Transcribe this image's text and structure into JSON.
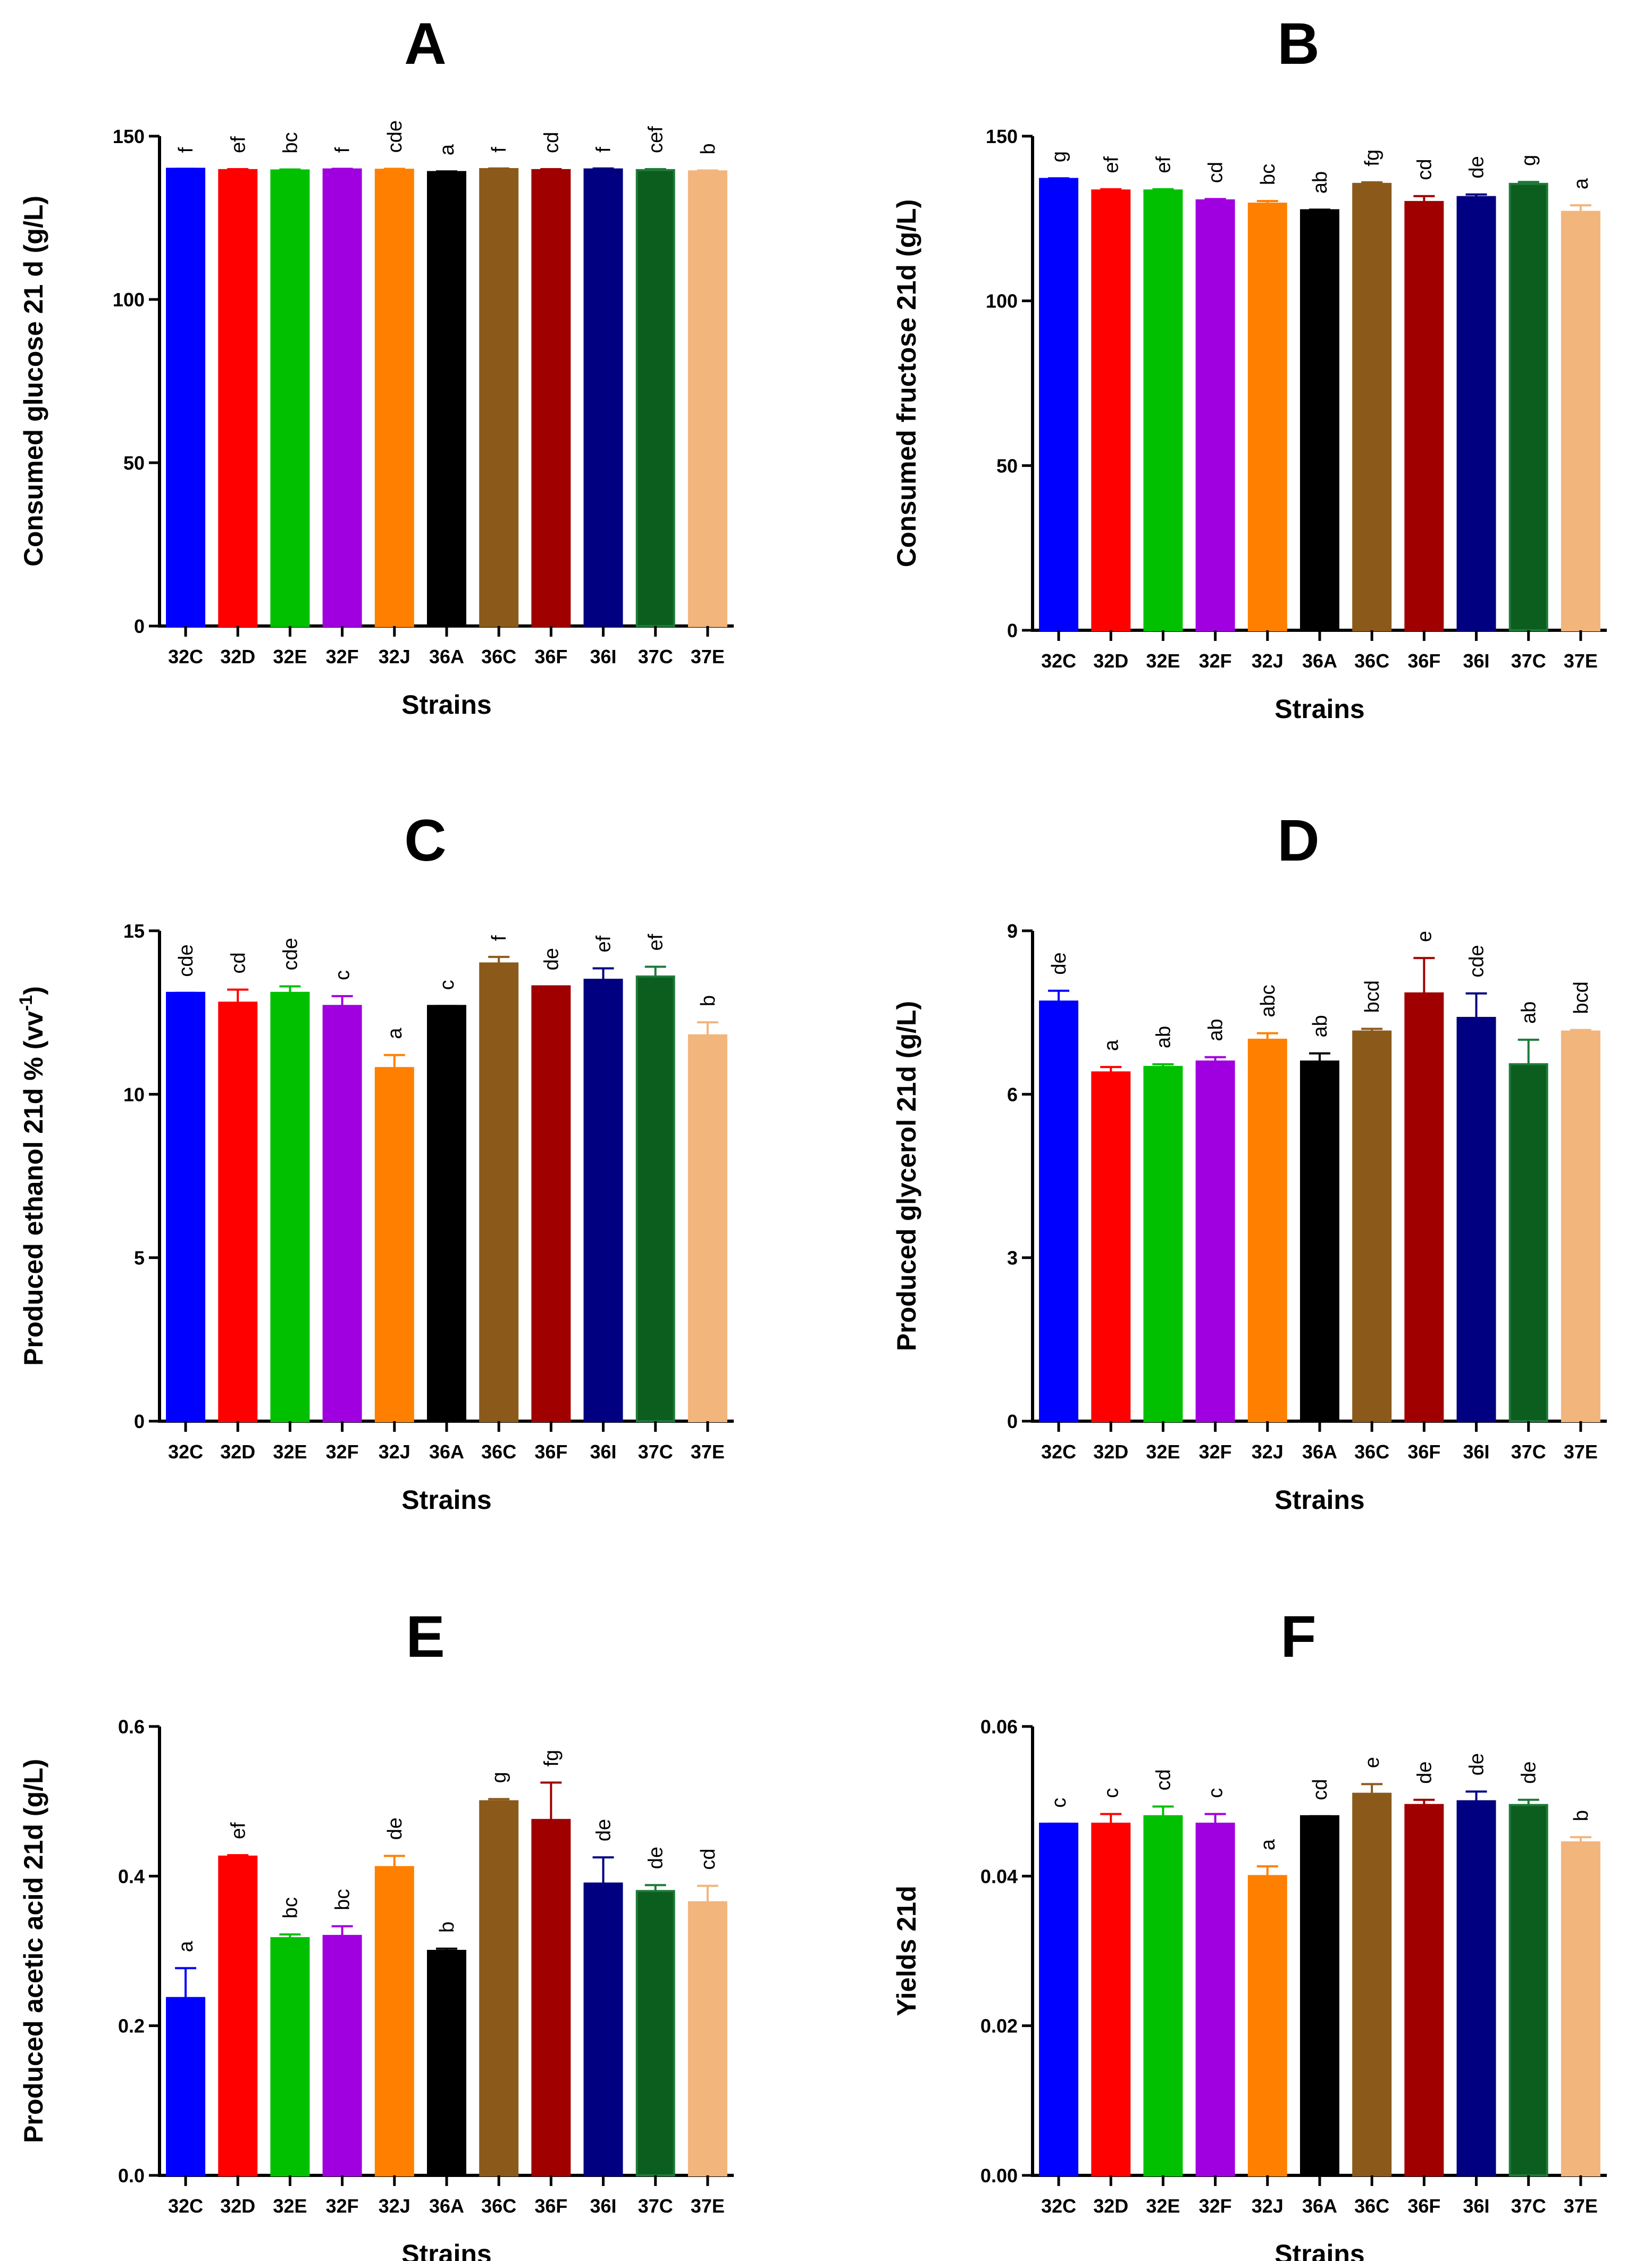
{
  "chart_data": [
    {
      "panel": "A",
      "type": "bar",
      "ylabel": "Consumed glucose 21 d (g/L)",
      "xlabel": "Strains",
      "categories": [
        "32C",
        "32D",
        "32E",
        "32F",
        "32J",
        "36A",
        "36C",
        "36F",
        "36I",
        "37C",
        "37E"
      ],
      "values": [
        140.0,
        139.6,
        139.5,
        139.8,
        139.7,
        139.0,
        139.9,
        139.6,
        139.8,
        139.6,
        139.2
      ],
      "errors": [
        0.0,
        0.3,
        0.3,
        0.2,
        0.3,
        0.2,
        0.2,
        0.3,
        0.3,
        0.3,
        0.3
      ],
      "letters": [
        "f",
        "ef",
        "bc",
        "f",
        "cde",
        "a",
        "f",
        "cd",
        "f",
        "cef",
        "b"
      ],
      "ylim": [
        0,
        150
      ],
      "yticks": [
        0,
        50,
        100,
        150
      ],
      "ytick_labels": [
        "0",
        "50",
        "100",
        "150"
      ]
    },
    {
      "panel": "B",
      "type": "bar",
      "ylabel": "Consumed fructose 21d (g/L)",
      "xlabel": "Strains",
      "categories": [
        "32C",
        "32D",
        "32E",
        "32F",
        "32J",
        "36A",
        "36C",
        "36F",
        "36I",
        "37C",
        "37E"
      ],
      "values": [
        137.0,
        133.5,
        133.5,
        130.5,
        129.5,
        127.5,
        135.5,
        130.0,
        131.5,
        135.5,
        127.0
      ],
      "errors": [
        0.2,
        0.4,
        0.4,
        0.4,
        0.8,
        0.2,
        0.5,
        1.8,
        0.8,
        0.6,
        2.0
      ],
      "letters": [
        "g",
        "ef",
        "ef",
        "cd",
        "bc",
        "ab",
        "fg",
        "cd",
        "de",
        "g",
        "a"
      ],
      "ylim": [
        0,
        150
      ],
      "yticks": [
        0,
        50,
        100,
        150
      ],
      "ytick_labels": [
        "0",
        "50",
        "100",
        "150"
      ]
    },
    {
      "panel": "C",
      "type": "bar",
      "ylabel": "Produced ethanol 21d % (vv",
      "ylabel_sup": "-1",
      "ylabel_end": ")",
      "xlabel": "Strains",
      "categories": [
        "32C",
        "32D",
        "32E",
        "32F",
        "32J",
        "36A",
        "36C",
        "36F",
        "36I",
        "37C",
        "37E"
      ],
      "values": [
        13.1,
        12.8,
        13.1,
        12.7,
        10.8,
        12.7,
        14.0,
        13.3,
        13.5,
        13.6,
        11.8
      ],
      "errors": [
        0.0,
        0.4,
        0.2,
        0.3,
        0.4,
        0.0,
        0.2,
        0.0,
        0.35,
        0.3,
        0.4
      ],
      "letters": [
        "cde",
        "cd",
        "cde",
        "c",
        "a",
        "c",
        "f",
        "de",
        "ef",
        "ef",
        "b"
      ],
      "ylim": [
        0,
        15
      ],
      "yticks": [
        0,
        5,
        10,
        15
      ],
      "ytick_labels": [
        "0",
        "5",
        "10",
        "15"
      ]
    },
    {
      "panel": "D",
      "type": "bar",
      "ylabel": "Produced glycerol 21d (g/L)",
      "xlabel": "Strains",
      "categories": [
        "32C",
        "32D",
        "32E",
        "32F",
        "32J",
        "36A",
        "36C",
        "36F",
        "36I",
        "37C",
        "37E"
      ],
      "values": [
        7.7,
        6.4,
        6.5,
        6.6,
        7.0,
        6.6,
        7.15,
        7.85,
        7.4,
        6.55,
        7.15
      ],
      "errors": [
        0.2,
        0.1,
        0.05,
        0.08,
        0.12,
        0.15,
        0.05,
        0.65,
        0.45,
        0.45,
        0.03
      ],
      "letters": [
        "de",
        "a",
        "ab",
        "ab",
        "abc",
        "ab",
        "bcd",
        "e",
        "cde",
        "ab",
        "bcd"
      ],
      "ylim": [
        0,
        9
      ],
      "yticks": [
        0,
        3,
        6,
        9
      ],
      "ytick_labels": [
        "0",
        "3",
        "6",
        "9"
      ]
    },
    {
      "panel": "E",
      "type": "bar",
      "ylabel": "Produced acetic acid 21d (g/L)",
      "xlabel": "Strains",
      "categories": [
        "32C",
        "32D",
        "32E",
        "32F",
        "32J",
        "36A",
        "36C",
        "36F",
        "36I",
        "37C",
        "37E"
      ],
      "values": [
        0.237,
        0.426,
        0.317,
        0.32,
        0.412,
        0.3,
        0.5,
        0.475,
        0.39,
        0.38,
        0.365
      ],
      "errors": [
        0.04,
        0.002,
        0.005,
        0.013,
        0.015,
        0.003,
        0.003,
        0.05,
        0.035,
        0.008,
        0.022
      ],
      "letters": [
        "a",
        "ef",
        "bc",
        "bc",
        "de",
        "b",
        "g",
        "fg",
        "de",
        "de",
        "cd"
      ],
      "ylim": [
        0,
        0.6
      ],
      "yticks": [
        0,
        0.2,
        0.4,
        0.6
      ],
      "ytick_labels": [
        "0.0",
        "0.2",
        "0.4",
        "0.6"
      ]
    },
    {
      "panel": "F",
      "type": "bar",
      "ylabel": "Yields 21d",
      "xlabel": "Strains",
      "categories": [
        "32C",
        "32D",
        "32E",
        "32F",
        "32J",
        "36A",
        "36C",
        "36F",
        "36I",
        "37C",
        "37E"
      ],
      "values": [
        0.047,
        0.047,
        0.048,
        0.047,
        0.04,
        0.048,
        0.051,
        0.0495,
        0.05,
        0.0495,
        0.0445
      ],
      "errors": [
        0.0,
        0.0013,
        0.0013,
        0.0013,
        0.0013,
        0.0,
        0.0013,
        0.0007,
        0.0013,
        0.0007,
        0.0007
      ],
      "letters": [
        "c",
        "c",
        "cd",
        "c",
        "a",
        "cd",
        "e",
        "de",
        "de",
        "de",
        "b"
      ],
      "ylim": [
        0,
        0.06
      ],
      "yticks": [
        0,
        0.02,
        0.04,
        0.06
      ],
      "ytick_labels": [
        "0.00",
        "0.02",
        "0.04",
        "0.06"
      ]
    }
  ],
  "colors": [
    "#0000ff",
    "#ff0000",
    "#00c000",
    "#a000e0",
    "#ff8000",
    "#000000",
    "#8b5a1b",
    "#a00000",
    "#000080",
    "#0b5e1e",
    "#f2b57c"
  ],
  "edge_colors": [
    "#0000ff",
    "#ff0000",
    "#00c000",
    "#a000e0",
    "#ff8000",
    "#000000",
    "#8b5a1b",
    "#a00000",
    "#000080",
    "#1f7a3a",
    "#f2b57c"
  ]
}
